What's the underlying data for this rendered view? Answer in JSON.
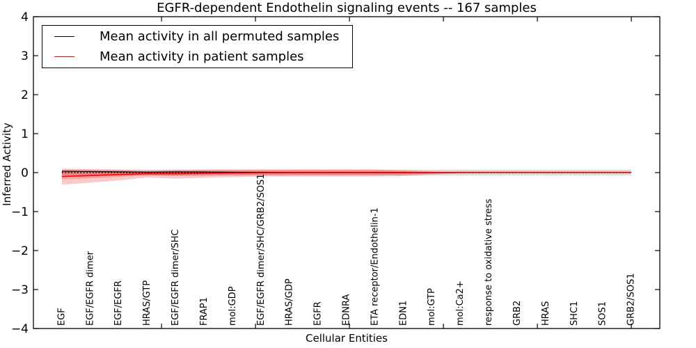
{
  "chart_data": {
    "type": "line",
    "title": "EGFR-dependent Endothelin signaling events -- 167 samples",
    "xlabel": "Cellular Entities",
    "ylabel": "Inferred Activity",
    "ylim": [
      -4,
      4
    ],
    "yticks": [
      -4,
      -3,
      -2,
      -1,
      0,
      1,
      2,
      3,
      4
    ],
    "grid": false,
    "legend_position": "upper left",
    "x_axis_minor_ticks": [
      3.5,
      6.8,
      10.1,
      13.4,
      16.7,
      20.0
    ],
    "categories": [
      "EGF",
      "EGF/EGFR dimer",
      "EGF/EGFR",
      "HRAS/GTP",
      "EGF/EGFR dimer/SHC",
      "FRAP1",
      "mol:GDP",
      "EGF/EGFR dimer/SHC/GRB2/SOS1",
      "HRAS/GDP",
      "EGFR",
      "EDNRA",
      "ETA receptor/Endothelin-1",
      "EDN1",
      "mol:GTP",
      "mol:Ca2+",
      "response to oxidative stress",
      "GRB2",
      "HRAS",
      "SHC1",
      "SOS1",
      "GRB2/SOS1"
    ],
    "baseline": {
      "value": 0,
      "color": "#000000",
      "style": "dotted"
    },
    "series": [
      {
        "name": "Mean activity in all permuted samples",
        "color": "#000000",
        "style": "solid",
        "values": [
          0.035,
          0.028,
          0.02,
          0.012,
          0.018,
          0.015,
          0.01,
          0.007,
          0.005,
          0.005,
          0.005,
          0.005,
          0.004,
          0.003,
          0.002,
          0.002,
          0.002,
          0.002,
          0.002,
          0.002,
          0.002
        ],
        "band": {
          "color": "#dcdcdc",
          "hi": [
            0.075,
            0.075,
            0.075,
            0.075,
            0.075,
            0.075,
            0.075,
            0.075,
            0.075,
            0.075,
            0.075,
            0.075,
            0.075,
            0.075,
            0.075,
            0.075,
            0.075,
            0.075,
            0.075,
            0.075,
            0.075
          ],
          "lo": [
            -0.075,
            -0.075,
            -0.075,
            -0.075,
            -0.075,
            -0.075,
            -0.075,
            -0.075,
            -0.075,
            -0.075,
            -0.075,
            -0.075,
            -0.075,
            -0.075,
            -0.075,
            -0.075,
            -0.075,
            -0.075,
            -0.075,
            -0.075,
            -0.075
          ]
        }
      },
      {
        "name": "Mean activity in patient samples",
        "color": "#ff0000",
        "style": "solid",
        "values": [
          -0.1,
          -0.075,
          -0.05,
          -0.025,
          -0.03,
          -0.02,
          -0.01,
          -0.004,
          0,
          0,
          0,
          0,
          0,
          0.002,
          0.006,
          0.006,
          0.006,
          0.006,
          0.006,
          0.006,
          0.006
        ],
        "band": {
          "color": "rgba(255,0,0,0.22)",
          "hi": [
            0.1,
            0.09,
            0.078,
            0.05,
            0.07,
            0.076,
            0.08,
            0.082,
            0.082,
            0.082,
            0.082,
            0.082,
            0.062,
            0.032,
            0.014,
            0.012,
            0.012,
            0.012,
            0.012,
            0.012,
            0.012
          ],
          "lo": [
            -0.31,
            -0.26,
            -0.2,
            -0.125,
            -0.155,
            -0.135,
            -0.115,
            -0.102,
            -0.1,
            -0.1,
            -0.1,
            -0.1,
            -0.088,
            -0.048,
            -0.02,
            -0.014,
            -0.014,
            -0.014,
            -0.014,
            -0.014,
            -0.014
          ]
        },
        "band_inner": {
          "color": "rgba(255,0,0,0.22)",
          "hi": [
            0.055,
            0.05,
            0.043,
            0.028,
            0.039,
            0.042,
            0.044,
            0.045,
            0.045,
            0.045,
            0.045,
            0.045,
            0.034,
            0.018,
            0.008,
            0.007,
            0.007,
            0.007,
            0.007,
            0.007,
            0.007
          ],
          "lo": [
            -0.17,
            -0.143,
            -0.11,
            -0.069,
            -0.085,
            -0.074,
            -0.063,
            -0.056,
            -0.055,
            -0.055,
            -0.055,
            -0.055,
            -0.048,
            -0.026,
            -0.011,
            -0.008,
            -0.008,
            -0.008,
            -0.008,
            -0.008,
            -0.008
          ]
        }
      }
    ],
    "legend": {
      "entries": [
        {
          "label": "Mean activity in all permuted samples",
          "color": "#000000"
        },
        {
          "label": "Mean activity in patient samples",
          "color": "#ff0000"
        }
      ]
    }
  }
}
